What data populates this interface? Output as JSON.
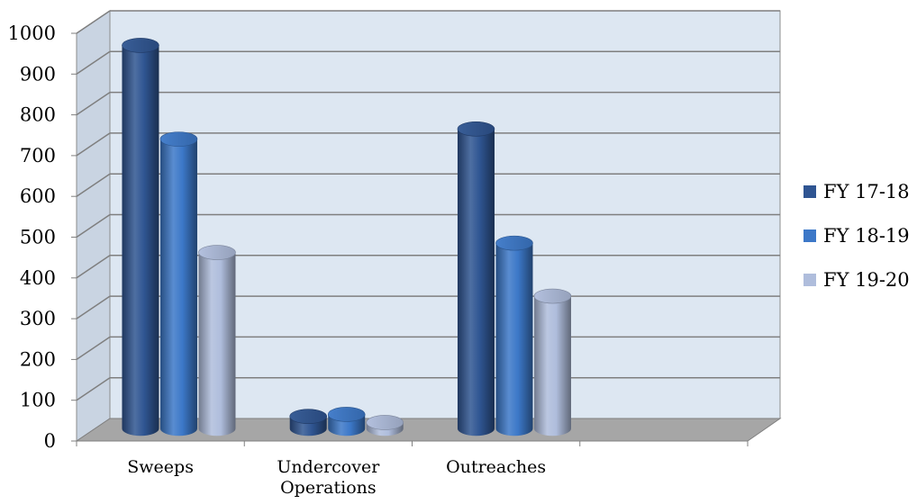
{
  "chart_data": {
    "type": "bar",
    "style": "3d-clustered-cylinder",
    "categories": [
      "Sweeps",
      "Undercover Operations",
      "Outreaches",
      ""
    ],
    "series": [
      {
        "name": "FY 17-18",
        "color": "#2F5592",
        "values": [
          940,
          30,
          735,
          null
        ]
      },
      {
        "name": "FY 18-19",
        "color": "#3C78C8",
        "values": [
          710,
          35,
          455,
          null
        ]
      },
      {
        "name": "FY 19-20",
        "color": "#AFBDDC",
        "values": [
          432,
          15,
          325,
          null
        ]
      }
    ],
    "y_ticks": [
      "0",
      "100",
      "200",
      "300",
      "400",
      "500",
      "600",
      "700",
      "800",
      "900",
      "1000"
    ],
    "ylim": [
      0,
      1000
    ],
    "grid": true,
    "legend_position": "right",
    "title": "",
    "xlabel": "",
    "ylabel": "",
    "colors": {
      "wall": "#DDE7F2",
      "floor": "#A6A6A6",
      "side_wall": "#C9D4E2",
      "gridline": "#7F7F7F"
    }
  }
}
